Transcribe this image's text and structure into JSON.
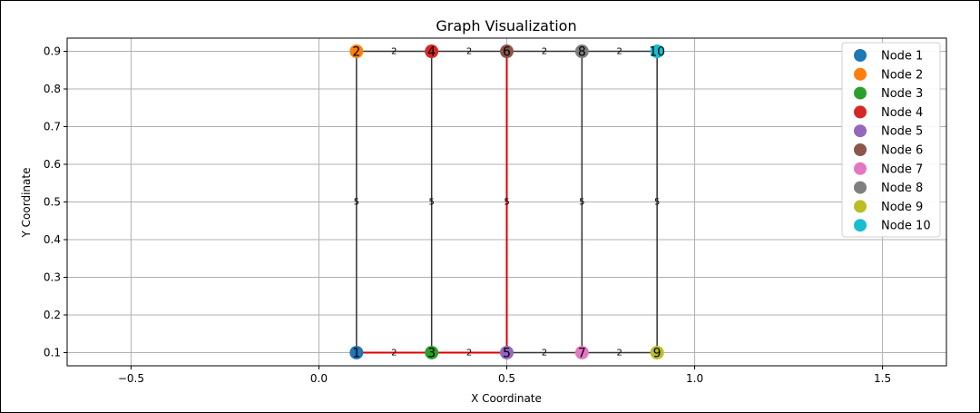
{
  "chart_data": {
    "type": "scatter",
    "title": "Graph Visualization",
    "xlabel": "X Coordinate",
    "ylabel": "Y Coordinate",
    "xlim": [
      -0.67,
      1.67
    ],
    "ylim": [
      0.065,
      0.935
    ],
    "xticks": [
      -0.5,
      0.0,
      0.5,
      1.0,
      1.5
    ],
    "xtick_labels": [
      "−0.5",
      "0.0",
      "0.5",
      "1.0",
      "1.5"
    ],
    "yticks": [
      0.1,
      0.2,
      0.3,
      0.4,
      0.5,
      0.6,
      0.7,
      0.8,
      0.9
    ],
    "ytick_labels": [
      "0.1",
      "0.2",
      "0.3",
      "0.4",
      "0.5",
      "0.6",
      "0.7",
      "0.8",
      "0.9"
    ],
    "grid": true,
    "legend_position": "top-right",
    "nodes": [
      {
        "id": "1",
        "legend": "Node 1",
        "x": 0.1,
        "y": 0.1,
        "color": "#1f77b4"
      },
      {
        "id": "2",
        "legend": "Node 2",
        "x": 0.1,
        "y": 0.9,
        "color": "#ff7f0e"
      },
      {
        "id": "3",
        "legend": "Node 3",
        "x": 0.3,
        "y": 0.1,
        "color": "#2ca02c"
      },
      {
        "id": "4",
        "legend": "Node 4",
        "x": 0.3,
        "y": 0.9,
        "color": "#d62728"
      },
      {
        "id": "5",
        "legend": "Node 5",
        "x": 0.5,
        "y": 0.1,
        "color": "#9467bd"
      },
      {
        "id": "6",
        "legend": "Node 6",
        "x": 0.5,
        "y": 0.9,
        "color": "#8c564b"
      },
      {
        "id": "7",
        "legend": "Node 7",
        "x": 0.7,
        "y": 0.1,
        "color": "#e377c2"
      },
      {
        "id": "8",
        "legend": "Node 8",
        "x": 0.7,
        "y": 0.9,
        "color": "#7f7f7f"
      },
      {
        "id": "9",
        "legend": "Node 9",
        "x": 0.9,
        "y": 0.1,
        "color": "#bcbd22"
      },
      {
        "id": "10",
        "legend": "Node 10",
        "x": 0.9,
        "y": 0.9,
        "color": "#17becf"
      }
    ],
    "edges": [
      {
        "from": "1",
        "to": "2",
        "weight": "5",
        "highlight": false
      },
      {
        "from": "3",
        "to": "4",
        "weight": "5",
        "highlight": false
      },
      {
        "from": "5",
        "to": "6",
        "weight": "5",
        "highlight": true
      },
      {
        "from": "7",
        "to": "8",
        "weight": "5",
        "highlight": false
      },
      {
        "from": "9",
        "to": "10",
        "weight": "5",
        "highlight": false
      },
      {
        "from": "2",
        "to": "4",
        "weight": "2",
        "highlight": false
      },
      {
        "from": "4",
        "to": "6",
        "weight": "2",
        "highlight": false
      },
      {
        "from": "6",
        "to": "8",
        "weight": "2",
        "highlight": false
      },
      {
        "from": "8",
        "to": "10",
        "weight": "2",
        "highlight": false
      },
      {
        "from": "1",
        "to": "3",
        "weight": "2",
        "highlight": true
      },
      {
        "from": "3",
        "to": "5",
        "weight": "2",
        "highlight": true
      },
      {
        "from": "5",
        "to": "7",
        "weight": "2",
        "highlight": false
      },
      {
        "from": "7",
        "to": "9",
        "weight": "2",
        "highlight": false
      }
    ],
    "colors": {
      "edge": "#333333",
      "highlight": "#e00000",
      "grid": "#b0b0b0"
    }
  }
}
